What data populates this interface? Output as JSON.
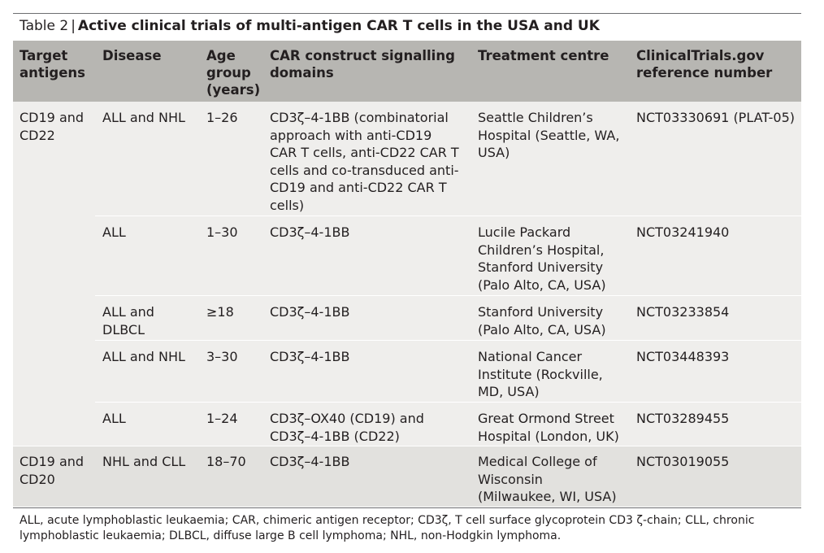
{
  "caption": {
    "label": "Table 2",
    "separator": "|",
    "title": "Active clinical trials of multi-antigen CAR T cells in the USA and UK"
  },
  "header": {
    "target_antigens": "Target antigens",
    "disease": "Disease",
    "age_group": "Age group (years)",
    "signalling": "CAR construct signalling domains",
    "centre": "Treatment centre",
    "reference": "ClinicalTrials.gov reference number"
  },
  "groups": [
    {
      "antigens": "CD19 and CD22",
      "rows": [
        {
          "disease": "ALL and NHL",
          "age": "1–26",
          "signalling": "CD3ζ–4-1BB (combinatorial approach with anti-CD19 CAR T cells, anti-CD22 CAR T cells and co-transduced anti-CD19 and anti-CD22 CAR T cells)",
          "centre": "Seattle Children’s Hospital (Seattle, WA, USA)",
          "reference": "NCT03330691 (PLAT-05)"
        },
        {
          "disease": "ALL",
          "age": "1–30",
          "signalling": "CD3ζ–4-1BB",
          "centre": "Lucile Packard Children’s Hospital, Stanford University (Palo Alto, CA, USA)",
          "reference": "NCT03241940"
        },
        {
          "disease": "ALL and DLBCL",
          "age": "≥18",
          "signalling": "CD3ζ–4-1BB",
          "centre": "Stanford University (Palo Alto, CA, USA)",
          "reference": "NCT03233854"
        },
        {
          "disease": "ALL and NHL",
          "age": "3–30",
          "signalling": "CD3ζ–4-1BB",
          "centre": "National Cancer Institute (Rockville, MD, USA)",
          "reference": "NCT03448393"
        },
        {
          "disease": "ALL",
          "age": "1–24",
          "signalling": "CD3ζ–OX40 (CD19) and CD3ζ–4-1BB (CD22)",
          "centre": "Great Ormond Street Hospital (London, UK)",
          "reference": "NCT03289455"
        }
      ]
    },
    {
      "antigens": "CD19 and CD20",
      "rows": [
        {
          "disease": "NHL and CLL",
          "age": "18–70",
          "signalling": "CD3ζ–4-1BB",
          "centre": "Medical College of Wisconsin (Milwaukee, WI, USA)",
          "reference": "NCT03019055"
        }
      ]
    }
  ],
  "footnote": "ALL, acute lymphoblastic leukaemia; CAR, chimeric antigen receptor; CD3ζ, T cell surface glycoprotein CD3 ζ-chain; CLL, chronic lymphoblastic leukaemia; DLBCL, diffuse large B cell lymphoma; NHL, non-Hodgkin lymphoma."
}
